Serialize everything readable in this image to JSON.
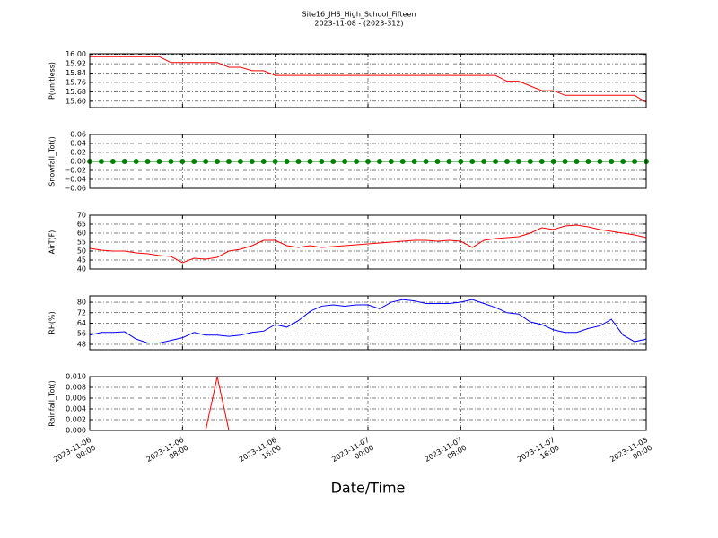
{
  "chart_data": [
    {
      "type": "line",
      "title": "Site16_JHS_High_School_Fifteen",
      "subtitle": "2023-11-08 - (2023-312)",
      "y_label": "P(unitless)",
      "color": "#ff0000",
      "grid": true,
      "x": [
        "2023-11-06 00:00",
        "2023-11-06 01:00",
        "2023-11-06 02:00",
        "2023-11-06 03:00",
        "2023-11-06 04:00",
        "2023-11-06 05:00",
        "2023-11-06 06:00",
        "2023-11-06 07:00",
        "2023-11-06 08:00",
        "2023-11-06 09:00",
        "2023-11-06 10:00",
        "2023-11-06 11:00",
        "2023-11-06 12:00",
        "2023-11-06 13:00",
        "2023-11-06 14:00",
        "2023-11-06 15:00",
        "2023-11-06 16:00",
        "2023-11-06 17:00",
        "2023-11-06 18:00",
        "2023-11-06 19:00",
        "2023-11-06 20:00",
        "2023-11-06 21:00",
        "2023-11-06 22:00",
        "2023-11-06 23:00",
        "2023-11-07 00:00",
        "2023-11-07 01:00",
        "2023-11-07 02:00",
        "2023-11-07 03:00",
        "2023-11-07 04:00",
        "2023-11-07 05:00",
        "2023-11-07 06:00",
        "2023-11-07 07:00",
        "2023-11-07 08:00",
        "2023-11-07 09:00",
        "2023-11-07 10:00",
        "2023-11-07 11:00",
        "2023-11-07 12:00",
        "2023-11-07 13:00",
        "2023-11-07 14:00",
        "2023-11-07 15:00",
        "2023-11-07 16:00",
        "2023-11-07 17:00",
        "2023-11-07 18:00",
        "2023-11-07 19:00",
        "2023-11-07 20:00",
        "2023-11-07 21:00",
        "2023-11-07 22:00",
        "2023-11-07 23:00",
        "2023-11-08 00:00"
      ],
      "values": [
        15.98,
        15.98,
        15.98,
        15.98,
        15.98,
        15.98,
        15.98,
        15.93,
        15.93,
        15.93,
        15.93,
        15.93,
        15.89,
        15.89,
        15.86,
        15.86,
        15.82,
        15.82,
        15.82,
        15.82,
        15.82,
        15.82,
        15.82,
        15.82,
        15.82,
        15.82,
        15.82,
        15.82,
        15.82,
        15.82,
        15.82,
        15.82,
        15.82,
        15.82,
        15.82,
        15.82,
        15.77,
        15.77,
        15.73,
        15.69,
        15.69,
        15.65,
        15.65,
        15.65,
        15.65,
        15.65,
        15.65,
        15.65,
        15.59
      ],
      "ylim": [
        15.545,
        16.005
      ],
      "yticks": [
        {
          "value": 15.6,
          "label": "15.60"
        },
        {
          "value": 15.68,
          "label": "15.68"
        },
        {
          "value": 15.76,
          "label": "15.76"
        },
        {
          "value": 15.84,
          "label": "15.84"
        },
        {
          "value": 15.92,
          "label": "15.92"
        },
        {
          "value": 16.0,
          "label": "16.00"
        }
      ]
    },
    {
      "type": "line",
      "y_label": "Snowfall_Tot()",
      "color": "#008000",
      "markers": true,
      "grid": true,
      "x": [
        "2023-11-06 00:00",
        "2023-11-06 01:00",
        "2023-11-06 02:00",
        "2023-11-06 03:00",
        "2023-11-06 04:00",
        "2023-11-06 05:00",
        "2023-11-06 06:00",
        "2023-11-06 07:00",
        "2023-11-06 08:00",
        "2023-11-06 09:00",
        "2023-11-06 10:00",
        "2023-11-06 11:00",
        "2023-11-06 12:00",
        "2023-11-06 13:00",
        "2023-11-06 14:00",
        "2023-11-06 15:00",
        "2023-11-06 16:00",
        "2023-11-06 17:00",
        "2023-11-06 18:00",
        "2023-11-06 19:00",
        "2023-11-06 20:00",
        "2023-11-06 21:00",
        "2023-11-06 22:00",
        "2023-11-06 23:00",
        "2023-11-07 00:00",
        "2023-11-07 01:00",
        "2023-11-07 02:00",
        "2023-11-07 03:00",
        "2023-11-07 04:00",
        "2023-11-07 05:00",
        "2023-11-07 06:00",
        "2023-11-07 07:00",
        "2023-11-07 08:00",
        "2023-11-07 09:00",
        "2023-11-07 10:00",
        "2023-11-07 11:00",
        "2023-11-07 12:00",
        "2023-11-07 13:00",
        "2023-11-07 14:00",
        "2023-11-07 15:00",
        "2023-11-07 16:00",
        "2023-11-07 17:00",
        "2023-11-07 18:00",
        "2023-11-07 19:00",
        "2023-11-07 20:00",
        "2023-11-07 21:00",
        "2023-11-07 22:00",
        "2023-11-07 23:00",
        "2023-11-08 00:00"
      ],
      "values": [
        0,
        0,
        0,
        0,
        0,
        0,
        0,
        0,
        0,
        0,
        0,
        0,
        0,
        0,
        0,
        0,
        0,
        0,
        0,
        0,
        0,
        0,
        0,
        0,
        0,
        0,
        0,
        0,
        0,
        0,
        0,
        0,
        0,
        0,
        0,
        0,
        0,
        0,
        0,
        0,
        0,
        0,
        0,
        0,
        0,
        0,
        0,
        0,
        0
      ],
      "ylim": [
        -0.06,
        0.06
      ],
      "yticks": [
        {
          "value": -0.06,
          "label": "−0.06"
        },
        {
          "value": -0.04,
          "label": "−0.04"
        },
        {
          "value": -0.02,
          "label": "−0.02"
        },
        {
          "value": 0,
          "label": "0.00"
        },
        {
          "value": 0.02,
          "label": "0.02"
        },
        {
          "value": 0.04,
          "label": "0.04"
        },
        {
          "value": 0.06,
          "label": "0.06"
        }
      ]
    },
    {
      "type": "line",
      "y_label": "AirT(F)",
      "color": "#ff0000",
      "grid": true,
      "x": [
        "2023-11-06 00:00",
        "2023-11-06 01:00",
        "2023-11-06 02:00",
        "2023-11-06 03:00",
        "2023-11-06 04:00",
        "2023-11-06 05:00",
        "2023-11-06 06:00",
        "2023-11-06 07:00",
        "2023-11-06 08:00",
        "2023-11-06 09:00",
        "2023-11-06 10:00",
        "2023-11-06 11:00",
        "2023-11-06 12:00",
        "2023-11-06 13:00",
        "2023-11-06 14:00",
        "2023-11-06 15:00",
        "2023-11-06 16:00",
        "2023-11-06 17:00",
        "2023-11-06 18:00",
        "2023-11-06 19:00",
        "2023-11-06 20:00",
        "2023-11-06 21:00",
        "2023-11-06 22:00",
        "2023-11-06 23:00",
        "2023-11-07 00:00",
        "2023-11-07 01:00",
        "2023-11-07 02:00",
        "2023-11-07 03:00",
        "2023-11-07 04:00",
        "2023-11-07 05:00",
        "2023-11-07 06:00",
        "2023-11-07 07:00",
        "2023-11-07 08:00",
        "2023-11-07 09:00",
        "2023-11-07 10:00",
        "2023-11-07 11:00",
        "2023-11-07 12:00",
        "2023-11-07 13:00",
        "2023-11-07 14:00",
        "2023-11-07 15:00",
        "2023-11-07 16:00",
        "2023-11-07 17:00",
        "2023-11-07 18:00",
        "2023-11-07 19:00",
        "2023-11-07 20:00",
        "2023-11-07 21:00",
        "2023-11-07 22:00",
        "2023-11-07 23:00",
        "2023-11-08 00:00"
      ],
      "values": [
        51.5,
        50.5,
        50,
        50,
        49,
        48.5,
        47.5,
        47,
        43.5,
        46,
        45.5,
        46.5,
        50,
        51,
        53,
        56,
        56,
        53,
        52,
        53,
        52,
        52.5,
        53,
        53.5,
        54,
        54.5,
        55,
        55.5,
        56,
        56,
        55.5,
        56,
        55.5,
        52,
        56,
        57,
        57.5,
        58,
        60,
        63,
        62,
        64,
        64.5,
        63.5,
        62,
        61,
        60,
        59,
        57.5
      ],
      "ylim": [
        40,
        70
      ],
      "yticks": [
        40,
        45,
        50,
        55,
        60,
        65,
        70
      ]
    },
    {
      "type": "line",
      "y_label": "RH(%)",
      "color": "#0000ff",
      "grid": true,
      "x": [
        "2023-11-06 00:00",
        "2023-11-06 01:00",
        "2023-11-06 02:00",
        "2023-11-06 03:00",
        "2023-11-06 04:00",
        "2023-11-06 05:00",
        "2023-11-06 06:00",
        "2023-11-06 07:00",
        "2023-11-06 08:00",
        "2023-11-06 09:00",
        "2023-11-06 10:00",
        "2023-11-06 11:00",
        "2023-11-06 12:00",
        "2023-11-06 13:00",
        "2023-11-06 14:00",
        "2023-11-06 15:00",
        "2023-11-06 16:00",
        "2023-11-06 17:00",
        "2023-11-06 18:00",
        "2023-11-06 19:00",
        "2023-11-06 20:00",
        "2023-11-06 21:00",
        "2023-11-06 22:00",
        "2023-11-06 23:00",
        "2023-11-07 00:00",
        "2023-11-07 01:00",
        "2023-11-07 02:00",
        "2023-11-07 03:00",
        "2023-11-07 04:00",
        "2023-11-07 05:00",
        "2023-11-07 06:00",
        "2023-11-07 07:00",
        "2023-11-07 08:00",
        "2023-11-07 09:00",
        "2023-11-07 10:00",
        "2023-11-07 11:00",
        "2023-11-07 12:00",
        "2023-11-07 13:00",
        "2023-11-07 14:00",
        "2023-11-07 15:00",
        "2023-11-07 16:00",
        "2023-11-07 17:00",
        "2023-11-07 18:00",
        "2023-11-07 19:00",
        "2023-11-07 20:00",
        "2023-11-07 21:00",
        "2023-11-07 22:00",
        "2023-11-07 23:00",
        "2023-11-08 00:00"
      ],
      "values": [
        55,
        57,
        57,
        57.5,
        52,
        49,
        49,
        51,
        53,
        57,
        55,
        55,
        54,
        55,
        57,
        58,
        63,
        61,
        66,
        73,
        77,
        78,
        77,
        78,
        78,
        75,
        80,
        82,
        81,
        79,
        79,
        79,
        80,
        82,
        79,
        76,
        72,
        71,
        65,
        63,
        59,
        57,
        57,
        60,
        62,
        67,
        55,
        50,
        52
      ],
      "ylim": [
        43.9,
        84.8
      ],
      "yticks": [
        48,
        56,
        64,
        72,
        80
      ]
    },
    {
      "type": "line",
      "y_label": "Rainfall_Tot()",
      "x_label": "Date/Time",
      "color": "#ff0000",
      "grid": true,
      "x": [
        "2023-11-06 00:00",
        "2023-11-06 01:00",
        "2023-11-06 02:00",
        "2023-11-06 03:00",
        "2023-11-06 04:00",
        "2023-11-06 05:00",
        "2023-11-06 06:00",
        "2023-11-06 07:00",
        "2023-11-06 08:00",
        "2023-11-06 09:00",
        "2023-11-06 10:00",
        "2023-11-06 11:00",
        "2023-11-06 12:00",
        "2023-11-06 13:00",
        "2023-11-06 14:00",
        "2023-11-06 15:00",
        "2023-11-06 16:00",
        "2023-11-06 17:00",
        "2023-11-06 18:00",
        "2023-11-06 19:00",
        "2023-11-06 20:00",
        "2023-11-06 21:00",
        "2023-11-06 22:00",
        "2023-11-06 23:00",
        "2023-11-07 00:00",
        "2023-11-07 01:00",
        "2023-11-07 02:00",
        "2023-11-07 03:00",
        "2023-11-07 04:00",
        "2023-11-07 05:00",
        "2023-11-07 06:00",
        "2023-11-07 07:00",
        "2023-11-07 08:00",
        "2023-11-07 09:00",
        "2023-11-07 10:00",
        "2023-11-07 11:00",
        "2023-11-07 12:00",
        "2023-11-07 13:00",
        "2023-11-07 14:00",
        "2023-11-07 15:00",
        "2023-11-07 16:00",
        "2023-11-07 17:00",
        "2023-11-07 18:00",
        "2023-11-07 19:00",
        "2023-11-07 20:00",
        "2023-11-07 21:00",
        "2023-11-07 22:00",
        "2023-11-07 23:00",
        "2023-11-08 00:00"
      ],
      "values": [
        0,
        0,
        0,
        0,
        0,
        0,
        0,
        0,
        0,
        0,
        0,
        0.01,
        0,
        0,
        0,
        0,
        0,
        0,
        0,
        0,
        0,
        0,
        0,
        0,
        0,
        0,
        0,
        0,
        0,
        0,
        0,
        0,
        0,
        0,
        0,
        0,
        0,
        0,
        0,
        0,
        0,
        0,
        0,
        0,
        0,
        0,
        0,
        0,
        0
      ],
      "ylim": [
        0,
        0.01
      ],
      "yticks": [
        {
          "value": 0,
          "label": "0.000"
        },
        {
          "value": 0.002,
          "label": "0.002"
        },
        {
          "value": 0.004,
          "label": "0.004"
        },
        {
          "value": 0.006,
          "label": "0.006"
        },
        {
          "value": 0.008,
          "label": "0.008"
        },
        {
          "value": 0.01,
          "label": "0.010"
        }
      ],
      "xlim": [
        "2023-11-06 00:00",
        "2023-11-08 00:00"
      ],
      "xticks": [
        "2023-11-06 00:00",
        "2023-11-06 08:00",
        "2023-11-06 16:00",
        "2023-11-07 00:00",
        "2023-11-07 08:00",
        "2023-11-07 16:00",
        "2023-11-08 00:00"
      ]
    }
  ]
}
